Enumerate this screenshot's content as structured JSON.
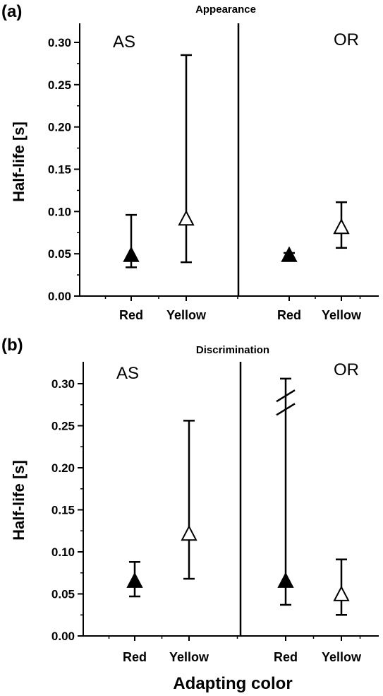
{
  "figure": {
    "x_axis_title": "Adapting color",
    "colors": {
      "ink": "#000000",
      "background": "#ffffff"
    },
    "marker_legend": {
      "filled_triangle": "Red",
      "open_triangle": "Yellow"
    }
  },
  "chart_data": [
    {
      "type": "scatter",
      "panel_letter": "(a)",
      "title": "Appearance",
      "ylabel": "Half-life [s]",
      "xlabel": "",
      "ylim": [
        0,
        0.325
      ],
      "yticks": [
        0.0,
        0.05,
        0.1,
        0.15,
        0.2,
        0.25,
        0.3
      ],
      "ytick_labels": [
        "0.00",
        "0.05",
        "0.10",
        "0.15",
        "0.20",
        "0.25",
        "0.30"
      ],
      "grid": false,
      "groups": [
        {
          "name": "AS",
          "points": [
            {
              "category": "Red",
              "marker": "filled-triangle",
              "y": 0.047,
              "err_low": 0.034,
              "err_high": 0.096
            },
            {
              "category": "Yellow",
              "marker": "open-triangle",
              "y": 0.09,
              "err_low": 0.04,
              "err_high": 0.285
            }
          ]
        },
        {
          "name": "OR",
          "points": [
            {
              "category": "Red",
              "marker": "filled-triangle",
              "y": 0.047,
              "err_low": 0.044,
              "err_high": 0.051
            },
            {
              "category": "Yellow",
              "marker": "open-triangle",
              "y": 0.08,
              "err_low": 0.057,
              "err_high": 0.111
            }
          ]
        }
      ]
    },
    {
      "type": "scatter",
      "panel_letter": "(b)",
      "title": "Discrimination",
      "ylabel": "Half-life [s]",
      "xlabel": "Adapting color",
      "ylim": [
        0,
        0.325
      ],
      "yticks": [
        0.0,
        0.05,
        0.1,
        0.15,
        0.2,
        0.25,
        0.3
      ],
      "ytick_labels": [
        "0.00",
        "0.05",
        "0.10",
        "0.15",
        "0.20",
        "0.25",
        "0.30"
      ],
      "grid": false,
      "groups": [
        {
          "name": "AS",
          "points": [
            {
              "category": "Red",
              "marker": "filled-triangle",
              "y": 0.064,
              "err_low": 0.047,
              "err_high": 0.088
            },
            {
              "category": "Yellow",
              "marker": "open-triangle",
              "y": 0.12,
              "err_low": 0.068,
              "err_high": 0.256
            }
          ]
        },
        {
          "name": "OR",
          "points": [
            {
              "category": "Red",
              "marker": "filled-triangle",
              "y": 0.064,
              "err_low": 0.037,
              "err_high": 0.306,
              "axis_break": true
            },
            {
              "category": "Yellow",
              "marker": "open-triangle",
              "y": 0.048,
              "err_low": 0.025,
              "err_high": 0.091
            }
          ]
        }
      ]
    }
  ]
}
